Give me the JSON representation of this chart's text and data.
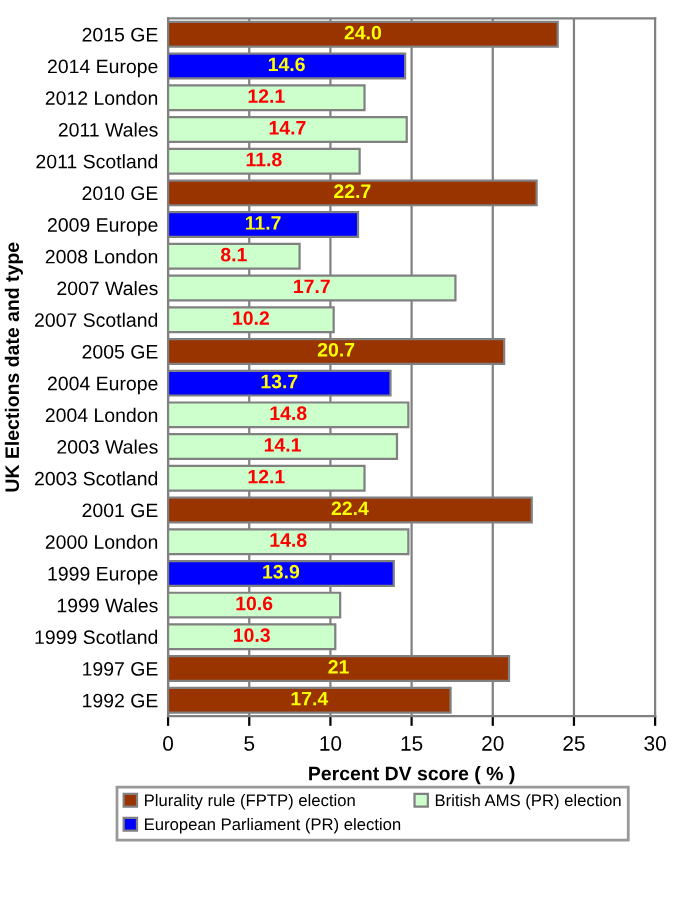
{
  "chart_data": {
    "type": "bar",
    "orientation": "horizontal",
    "stacked": true,
    "xlabel": "Percent DV score ( % )",
    "ylabel": "UK Elections date and type",
    "categories": [
      "2015 GE",
      "2014 Europe",
      "2012 London",
      "2011 Wales",
      "2011 Scotland",
      "2010 GE",
      "2009 Europe",
      "2008 London",
      "2007 Wales",
      "2007 Scotland",
      "2005 GE",
      "2004 Europe",
      "2004 London",
      "2003 Wales",
      "2003 Scotland",
      "2001 GE",
      "2000 London",
      "1999 Europe",
      "1999 Wales",
      "1999 Scotland",
      "1997 GE",
      "1992 GE"
    ],
    "series": [
      {
        "name": "Plurality rule (FPTP) election",
        "color": "#993300",
        "values": [
          24.0,
          null,
          null,
          null,
          null,
          22.7,
          null,
          null,
          null,
          null,
          20.7,
          null,
          null,
          null,
          null,
          22.4,
          null,
          null,
          null,
          null,
          21,
          17.4
        ],
        "value_labels": [
          "24.0",
          null,
          null,
          null,
          null,
          "22.7",
          null,
          null,
          null,
          null,
          "20.7",
          null,
          null,
          null,
          null,
          "22.4",
          null,
          null,
          null,
          null,
          "21",
          "17.4"
        ]
      },
      {
        "name": "European Parliament (PR) election",
        "color": "#0000ff",
        "values": [
          null,
          14.6,
          null,
          null,
          null,
          null,
          11.7,
          null,
          null,
          null,
          null,
          13.7,
          null,
          null,
          null,
          null,
          null,
          13.9,
          null,
          null,
          null,
          null
        ],
        "value_labels": [
          null,
          "14.6",
          null,
          null,
          null,
          null,
          "11.7",
          null,
          null,
          null,
          null,
          "13.7",
          null,
          null,
          null,
          null,
          null,
          "13.9",
          null,
          null,
          null,
          null
        ]
      },
      {
        "name": "British AMS (PR) election",
        "color": "#ccffcc",
        "values": [
          null,
          null,
          12.1,
          14.7,
          11.8,
          null,
          null,
          8.1,
          17.7,
          10.2,
          null,
          null,
          14.8,
          14.1,
          12.1,
          null,
          14.8,
          null,
          10.6,
          10.3,
          null,
          null
        ],
        "value_labels": [
          null,
          null,
          "12.1",
          "14.7",
          "11.8",
          null,
          null,
          "8.1",
          "17.7",
          "10.2",
          null,
          null,
          "14.8",
          "14.1",
          "12.1",
          null,
          "14.8",
          null,
          "10.6",
          "10.3",
          null,
          null
        ]
      }
    ],
    "xlim": [
      0,
      30
    ],
    "xticks": [
      0,
      5,
      10,
      15,
      20,
      25,
      30
    ],
    "grid": "x",
    "legend": "bottom"
  }
}
